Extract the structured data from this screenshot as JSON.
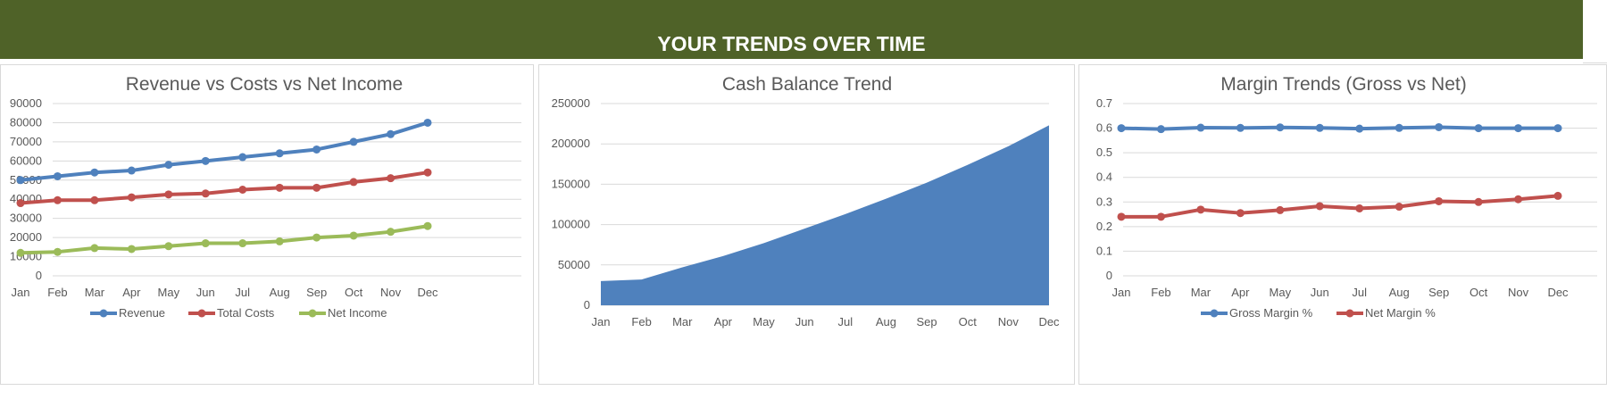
{
  "header": {
    "title": "YOUR TRENDS OVER TIME",
    "color": "#4f6228"
  },
  "chart_data": [
    {
      "type": "line",
      "title": "Revenue vs Costs vs Net Income",
      "categories": [
        "Jan",
        "Feb",
        "Mar",
        "Apr",
        "May",
        "Jun",
        "Jul",
        "Aug",
        "Sep",
        "Oct",
        "Nov",
        "Dec"
      ],
      "ylim": [
        0,
        90000
      ],
      "yticks": [
        "0",
        "10000",
        "20000",
        "30000",
        "40000",
        "50000",
        "60000",
        "70000",
        "80000",
        "90000"
      ],
      "grid": true,
      "legend_position": "bottom",
      "series": [
        {
          "name": "Revenue",
          "color": "#4f81bd",
          "values": [
            50000,
            52000,
            54000,
            55000,
            58000,
            60000,
            62000,
            64000,
            66000,
            70000,
            74000,
            80000
          ]
        },
        {
          "name": "Total Costs",
          "color": "#c0504d",
          "values": [
            38000,
            39500,
            39500,
            41000,
            42500,
            43000,
            45000,
            46000,
            46000,
            49000,
            51000,
            54000
          ]
        },
        {
          "name": "Net Income",
          "color": "#9bbb59",
          "values": [
            12000,
            12500,
            14500,
            14000,
            15500,
            17000,
            17000,
            18000,
            20000,
            21000,
            23000,
            26000
          ]
        }
      ]
    },
    {
      "type": "area",
      "title": "Cash Balance Trend",
      "categories": [
        "Jan",
        "Feb",
        "Mar",
        "Apr",
        "May",
        "Jun",
        "Jul",
        "Aug",
        "Sep",
        "Oct",
        "Nov",
        "Dec"
      ],
      "ylim": [
        0,
        250000
      ],
      "yticks": [
        "0",
        "50000",
        "100000",
        "150000",
        "200000",
        "250000"
      ],
      "grid": true,
      "series": [
        {
          "color": "#4f81bd",
          "values": [
            30000,
            32000,
            47000,
            61000,
            77000,
            95000,
            113000,
            132000,
            152000,
            174000,
            197000,
            223000
          ]
        }
      ]
    },
    {
      "type": "line",
      "title": "Margin Trends (Gross vs Net)",
      "categories": [
        "Jan",
        "Feb",
        "Mar",
        "Apr",
        "May",
        "Jun",
        "Jul",
        "Aug",
        "Sep",
        "Oct",
        "Nov",
        "Dec"
      ],
      "ylim": [
        0,
        0.7
      ],
      "yticks": [
        "0",
        "0.1",
        "0.2",
        "0.3",
        "0.4",
        "0.5",
        "0.6",
        "0.7"
      ],
      "grid": true,
      "legend_position": "bottom",
      "series": [
        {
          "name": "Gross Margin %",
          "color": "#4f81bd",
          "values": [
            0.6,
            0.596,
            0.602,
            0.601,
            0.603,
            0.601,
            0.598,
            0.601,
            0.604,
            0.6,
            0.6,
            0.6
          ]
        },
        {
          "name": "Net Margin %",
          "color": "#c0504d",
          "values": [
            0.24,
            0.24,
            0.269,
            0.255,
            0.267,
            0.283,
            0.274,
            0.281,
            0.303,
            0.3,
            0.311,
            0.325
          ]
        }
      ]
    }
  ]
}
